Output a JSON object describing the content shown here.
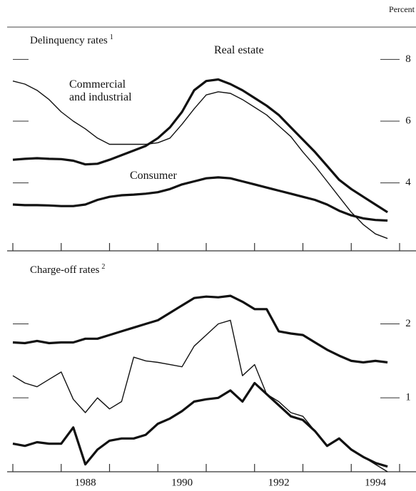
{
  "unit_label": "Percent",
  "chart_data": [
    {
      "type": "line",
      "title": "Delinquency rates",
      "title_note": "1",
      "xlim": [
        1987,
        1995
      ],
      "xticks_minor": [
        1987,
        1988,
        1989,
        1990,
        1991,
        1992,
        1993,
        1994,
        1995
      ],
      "ylim": [
        1.8,
        9
      ],
      "yticks": [
        4,
        6,
        8
      ],
      "x": [
        1987,
        1987.25,
        1987.5,
        1987.75,
        1988,
        1988.25,
        1988.5,
        1988.75,
        1989,
        1989.25,
        1989.5,
        1989.75,
        1990,
        1990.25,
        1990.5,
        1990.75,
        1991,
        1991.25,
        1991.5,
        1991.75,
        1992,
        1992.25,
        1992.5,
        1992.75,
        1993,
        1993.25,
        1993.5,
        1993.75,
        1994,
        1994.25,
        1994.5,
        1994.75
      ],
      "series": [
        {
          "name": "Real estate",
          "color": "#111111",
          "width": 3.2,
          "values": [
            4.75,
            4.78,
            4.8,
            4.78,
            4.77,
            4.72,
            4.6,
            4.62,
            4.75,
            4.9,
            5.05,
            5.2,
            5.45,
            5.8,
            6.3,
            7.0,
            7.3,
            7.35,
            7.2,
            7.0,
            6.75,
            6.5,
            6.2,
            5.8,
            5.4,
            5.0,
            4.55,
            4.1,
            3.8,
            3.55,
            3.3,
            3.05
          ]
        },
        {
          "name": "Commercial and industrial",
          "color": "#111111",
          "width": 1.4,
          "values": [
            7.3,
            7.2,
            7.0,
            6.7,
            6.3,
            6.0,
            5.75,
            5.45,
            5.25,
            5.25,
            5.25,
            5.25,
            5.3,
            5.45,
            5.9,
            6.4,
            6.85,
            6.95,
            6.9,
            6.7,
            6.45,
            6.2,
            5.85,
            5.5,
            5.0,
            4.55,
            4.05,
            3.55,
            3.05,
            2.65,
            2.35,
            2.2
          ]
        },
        {
          "name": "Consumer",
          "color": "#111111",
          "width": 3.2,
          "values": [
            3.3,
            3.28,
            3.28,
            3.27,
            3.25,
            3.25,
            3.3,
            3.45,
            3.55,
            3.6,
            3.62,
            3.65,
            3.7,
            3.8,
            3.95,
            4.05,
            4.15,
            4.18,
            4.15,
            4.05,
            3.95,
            3.85,
            3.75,
            3.65,
            3.55,
            3.45,
            3.3,
            3.1,
            2.95,
            2.85,
            2.8,
            2.78
          ]
        }
      ]
    },
    {
      "type": "line",
      "title": "Charge-off rates",
      "title_note": "2",
      "xlim": [
        1987,
        1995
      ],
      "xticks_minor": [
        1987,
        1988,
        1989,
        1990,
        1991,
        1992,
        1993,
        1994,
        1995
      ],
      "xticks": [
        {
          "value": 1988.5,
          "label": "1988"
        },
        {
          "value": 1990.5,
          "label": "1990"
        },
        {
          "value": 1992.5,
          "label": "1992"
        },
        {
          "value": 1994.5,
          "label": "1994"
        }
      ],
      "ylim": [
        0,
        2.95
      ],
      "yticks": [
        1,
        2
      ],
      "x": [
        1987,
        1987.25,
        1987.5,
        1987.75,
        1988,
        1988.25,
        1988.5,
        1988.75,
        1989,
        1989.25,
        1989.5,
        1989.75,
        1990,
        1990.25,
        1990.5,
        1990.75,
        1991,
        1991.25,
        1991.5,
        1991.75,
        1992,
        1992.25,
        1992.5,
        1992.75,
        1993,
        1993.25,
        1993.5,
        1993.75,
        1994,
        1994.25,
        1994.5,
        1994.75
      ],
      "series": [
        {
          "color": "#111111",
          "width": 3.2,
          "values": [
            1.75,
            1.74,
            1.77,
            1.74,
            1.75,
            1.75,
            1.8,
            1.8,
            1.85,
            1.9,
            1.95,
            2.0,
            2.05,
            2.15,
            2.25,
            2.35,
            2.37,
            2.36,
            2.38,
            2.3,
            2.2,
            2.2,
            1.9,
            1.87,
            1.85,
            1.75,
            1.65,
            1.57,
            1.5,
            1.48,
            1.5,
            1.48
          ]
        },
        {
          "color": "#111111",
          "width": 1.4,
          "values": [
            1.3,
            1.2,
            1.15,
            1.25,
            1.35,
            0.98,
            0.8,
            1.0,
            0.85,
            0.95,
            1.55,
            1.5,
            1.48,
            1.45,
            1.42,
            1.7,
            1.85,
            2.0,
            2.05,
            1.3,
            1.45,
            1.05,
            0.95,
            0.8,
            0.75,
            0.55,
            0.35,
            0.45,
            0.3,
            0.2,
            0.1,
            0.0
          ]
        },
        {
          "color": "#111111",
          "width": 3.2,
          "values": [
            0.38,
            0.35,
            0.4,
            0.38,
            0.38,
            0.6,
            0.1,
            0.3,
            0.42,
            0.45,
            0.45,
            0.5,
            0.65,
            0.72,
            0.82,
            0.95,
            0.98,
            1.0,
            1.1,
            0.95,
            1.2,
            1.05,
            0.9,
            0.75,
            0.7,
            0.55,
            0.35,
            0.45,
            0.3,
            0.2,
            0.12,
            0.07
          ]
        }
      ]
    }
  ]
}
